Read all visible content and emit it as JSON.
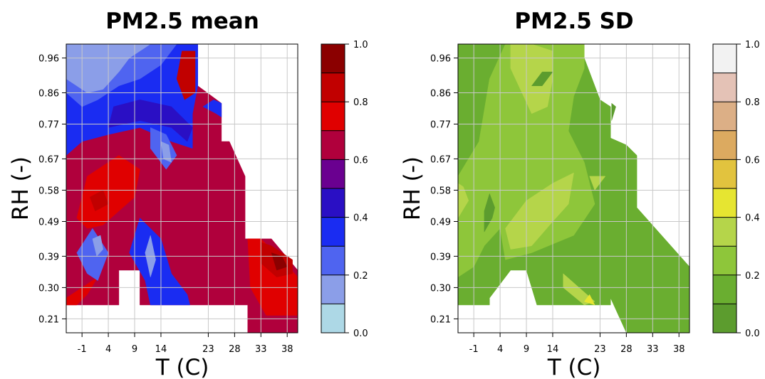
{
  "chart_data": [
    {
      "type": "heatmap",
      "title": "PM2.5 mean",
      "xlabel": "T (C)",
      "ylabel": "RH (-)",
      "x_ticks": [
        "-1",
        "4",
        "9",
        "14",
        "23",
        "28",
        "33",
        "38"
      ],
      "x_tick_values": [
        -1,
        4,
        9,
        14,
        23,
        28,
        33,
        38
      ],
      "y_ticks": [
        "0.21",
        "0.30",
        "0.39",
        "0.49",
        "0.58",
        "0.67",
        "0.77",
        "0.86",
        "0.96"
      ],
      "y_tick_values": [
        0.21,
        0.3,
        0.39,
        0.49,
        0.58,
        0.67,
        0.77,
        0.86,
        0.96
      ],
      "xlim": [
        -4,
        40
      ],
      "ylim": [
        0.17,
        1.0
      ],
      "grid": true,
      "colorbar": {
        "ticks": [
          "0.0",
          "0.2",
          "0.4",
          "0.6",
          "0.8",
          "1.0"
        ],
        "levels": [
          0.0,
          0.1,
          0.2,
          0.3,
          0.4,
          0.5,
          0.6,
          0.7,
          0.8,
          0.9,
          1.0
        ],
        "colors": [
          "#add8e6",
          "#8b9ee8",
          "#4f64f0",
          "#1a2cf2",
          "#2a0fc4",
          "#6a0090",
          "#b0003c",
          "#e00000",
          "#c10000",
          "#8b0000"
        ]
      },
      "regions": [
        {
          "value": 0.65,
          "polygon": [
            [
              -4,
              0.25
            ],
            [
              6,
              0.25
            ],
            [
              6,
              0.35
            ],
            [
              10,
              0.35
            ],
            [
              10,
              0.25
            ],
            [
              30.5,
              0.25
            ],
            [
              30.5,
              0.17
            ],
            [
              40,
              0.17
            ],
            [
              40,
              0.35
            ],
            [
              35,
              0.44
            ],
            [
              30,
              0.44
            ],
            [
              30,
              0.62
            ],
            [
              27,
              0.72
            ],
            [
              25.5,
              0.72
            ],
            [
              25.5,
              0.83
            ],
            [
              21,
              0.88
            ],
            [
              21,
              1.0
            ],
            [
              -4,
              1.0
            ]
          ]
        },
        {
          "value": 0.75,
          "polygon": [
            [
              -2,
              0.5
            ],
            [
              0,
              0.62
            ],
            [
              6,
              0.68
            ],
            [
              10,
              0.64
            ],
            [
              9,
              0.56
            ],
            [
              6,
              0.52
            ],
            [
              3,
              0.48
            ],
            [
              0,
              0.47
            ]
          ]
        },
        {
          "value": 0.75,
          "polygon": [
            [
              -4,
              0.27
            ],
            [
              -1,
              0.3
            ],
            [
              2,
              0.33
            ],
            [
              0,
              0.28
            ],
            [
              -2,
              0.25
            ],
            [
              -4,
              0.25
            ]
          ]
        },
        {
          "value": 0.75,
          "polygon": [
            [
              30.5,
              0.44
            ],
            [
              33,
              0.44
            ],
            [
              37,
              0.38
            ],
            [
              40,
              0.33
            ],
            [
              40,
              0.22
            ],
            [
              34,
              0.22
            ],
            [
              31,
              0.3
            ]
          ]
        },
        {
          "value": 0.85,
          "polygon": [
            [
              33,
              0.43
            ],
            [
              35,
              0.42
            ],
            [
              39,
              0.38
            ],
            [
              39,
              0.34
            ],
            [
              36,
              0.33
            ],
            [
              33,
              0.37
            ]
          ]
        },
        {
          "value": 0.95,
          "polygon": [
            [
              35,
              0.4
            ],
            [
              37,
              0.39
            ],
            [
              38,
              0.36
            ],
            [
              36,
              0.35
            ]
          ]
        },
        {
          "value": 0.85,
          "polygon": [
            [
              0.5,
              0.56
            ],
            [
              3,
              0.58
            ],
            [
              4,
              0.54
            ],
            [
              1.5,
              0.52
            ]
          ]
        },
        {
          "value": 0.35,
          "polygon": [
            [
              -4,
              0.68
            ],
            [
              -1,
              0.72
            ],
            [
              4,
              0.74
            ],
            [
              10,
              0.76
            ],
            [
              16,
              0.72
            ],
            [
              20,
              0.7
            ],
            [
              20,
              0.8
            ],
            [
              21,
              0.88
            ],
            [
              21,
              1.0
            ],
            [
              -4,
              1.0
            ]
          ]
        },
        {
          "value": 0.45,
          "polygon": [
            [
              4,
              0.76
            ],
            [
              10,
              0.78
            ],
            [
              16,
              0.76
            ],
            [
              19,
              0.72
            ],
            [
              20,
              0.76
            ],
            [
              16,
              0.82
            ],
            [
              10,
              0.84
            ],
            [
              5,
              0.82
            ]
          ]
        },
        {
          "value": 0.25,
          "polygon": [
            [
              -4,
              0.86
            ],
            [
              -1,
              0.82
            ],
            [
              2,
              0.84
            ],
            [
              6,
              0.88
            ],
            [
              10,
              0.9
            ],
            [
              14,
              0.94
            ],
            [
              17,
              1.0
            ],
            [
              -4,
              1.0
            ]
          ]
        },
        {
          "value": 0.15,
          "polygon": [
            [
              -4,
              0.9
            ],
            [
              0,
              0.86
            ],
            [
              3,
              0.87
            ],
            [
              6,
              0.92
            ],
            [
              8,
              0.96
            ],
            [
              12,
              1.0
            ],
            [
              -4,
              1.0
            ]
          ]
        },
        {
          "value": 0.25,
          "polygon": [
            [
              12,
              0.76
            ],
            [
              15,
              0.74
            ],
            [
              17,
              0.68
            ],
            [
              15,
              0.64
            ],
            [
              12,
              0.7
            ]
          ]
        },
        {
          "value": 0.15,
          "polygon": [
            [
              14,
              0.72
            ],
            [
              15.5,
              0.71
            ],
            [
              16,
              0.66
            ],
            [
              14.5,
              0.67
            ]
          ]
        },
        {
          "value": 0.25,
          "polygon": [
            [
              -2,
              0.4
            ],
            [
              1,
              0.47
            ],
            [
              4,
              0.4
            ],
            [
              2,
              0.32
            ],
            [
              0,
              0.34
            ]
          ]
        },
        {
          "value": 0.15,
          "polygon": [
            [
              1,
              0.44
            ],
            [
              2.5,
              0.45
            ],
            [
              3,
              0.41
            ],
            [
              1.8,
              0.39
            ]
          ]
        },
        {
          "value": 0.35,
          "polygon": [
            [
              8,
              0.4
            ],
            [
              10,
              0.5
            ],
            [
              14,
              0.44
            ],
            [
              16,
              0.34
            ],
            [
              19,
              0.28
            ],
            [
              19.5,
              0.25
            ],
            [
              12,
              0.25
            ],
            [
              11,
              0.32
            ]
          ]
        },
        {
          "value": 0.15,
          "polygon": [
            [
              11,
              0.4
            ],
            [
              12,
              0.45
            ],
            [
              13,
              0.38
            ],
            [
              12,
              0.33
            ]
          ]
        },
        {
          "value": 0.35,
          "polygon": [
            [
              22,
              0.82
            ],
            [
              24.5,
              0.8
            ],
            [
              25.5,
              0.79
            ],
            [
              25.5,
              0.83
            ],
            [
              24,
              0.84
            ]
          ]
        },
        {
          "value": 0.85,
          "polygon": [
            [
              18,
              0.98
            ],
            [
              20.5,
              0.98
            ],
            [
              20.5,
              0.86
            ],
            [
              18.5,
              0.84
            ],
            [
              17,
              0.9
            ]
          ]
        }
      ]
    },
    {
      "type": "heatmap",
      "title": "PM2.5 SD",
      "xlabel": "T (C)",
      "ylabel": "RH (-)",
      "x_ticks": [
        "-1",
        "4",
        "9",
        "14",
        "23",
        "28",
        "33",
        "38"
      ],
      "x_tick_values": [
        -1,
        4,
        9,
        14,
        23,
        28,
        33,
        38
      ],
      "y_ticks": [
        "0.21",
        "0.30",
        "0.39",
        "0.49",
        "0.58",
        "0.67",
        "0.77",
        "0.86",
        "0.96"
      ],
      "y_tick_values": [
        0.21,
        0.3,
        0.39,
        0.49,
        0.58,
        0.67,
        0.77,
        0.86,
        0.96
      ],
      "xlim": [
        -4,
        40
      ],
      "ylim": [
        0.17,
        1.0
      ],
      "grid": true,
      "colorbar": {
        "ticks": [
          "0.0",
          "0.2",
          "0.4",
          "0.6",
          "0.8",
          "1.0"
        ],
        "levels": [
          0.0,
          0.1,
          0.2,
          0.3,
          0.4,
          0.5,
          0.6,
          0.7,
          0.8,
          0.9,
          1.0
        ],
        "colors": [
          "#5c9c2e",
          "#6aae30",
          "#8ec63a",
          "#b5d54a",
          "#e6e531",
          "#e2c33e",
          "#dcaa60",
          "#dcaf86",
          "#e4c2b6",
          "#f2f2f2"
        ]
      },
      "regions": [
        {
          "value": 0.15,
          "polygon": [
            [
              -4,
              0.25
            ],
            [
              2,
              0.25
            ],
            [
              2,
              0.27
            ],
            [
              6,
              0.35
            ],
            [
              9,
              0.35
            ],
            [
              11,
              0.25
            ],
            [
              25,
              0.25
            ],
            [
              25,
              0.27
            ],
            [
              28,
              0.17
            ],
            [
              40,
              0.17
            ],
            [
              40,
              0.36
            ],
            [
              30,
              0.53
            ],
            [
              30,
              0.68
            ],
            [
              28,
              0.71
            ],
            [
              25,
              0.73
            ],
            [
              25,
              0.82
            ],
            [
              23,
              0.84
            ],
            [
              19,
              1.0
            ],
            [
              -4,
              1.0
            ],
            [
              -4,
              0.62
            ]
          ]
        },
        {
          "value": 0.25,
          "polygon": [
            [
              -4,
              0.62
            ],
            [
              0,
              0.72
            ],
            [
              2,
              0.9
            ],
            [
              5,
              1.0
            ],
            [
              20,
              1.0
            ],
            [
              20,
              0.93
            ],
            [
              18,
              0.85
            ],
            [
              17,
              0.75
            ],
            [
              20,
              0.66
            ],
            [
              22,
              0.54
            ],
            [
              18,
              0.45
            ],
            [
              10,
              0.4
            ],
            [
              5,
              0.38
            ],
            [
              4,
              0.47
            ],
            [
              1,
              0.42
            ],
            [
              -1,
              0.36
            ],
            [
              -4,
              0.33
            ]
          ]
        },
        {
          "value": 0.35,
          "polygon": [
            [
              6,
              0.93
            ],
            [
              10,
              0.8
            ],
            [
              13,
              0.82
            ],
            [
              14,
              0.9
            ],
            [
              14,
              0.98
            ],
            [
              10,
              1.0
            ],
            [
              6,
              1.0
            ]
          ]
        },
        {
          "value": 0.35,
          "polygon": [
            [
              5,
              0.47
            ],
            [
              9,
              0.55
            ],
            [
              14,
              0.6
            ],
            [
              18,
              0.63
            ],
            [
              17,
              0.54
            ],
            [
              14,
              0.49
            ],
            [
              10,
              0.42
            ],
            [
              6,
              0.41
            ]
          ]
        },
        {
          "value": 0.35,
          "polygon": [
            [
              -4,
              0.6
            ],
            [
              -3,
              0.59
            ],
            [
              -2,
              0.55
            ],
            [
              -4,
              0.5
            ]
          ]
        },
        {
          "value": 0.35,
          "polygon": [
            [
              21,
              0.62
            ],
            [
              24,
              0.62
            ],
            [
              22,
              0.58
            ]
          ]
        },
        {
          "value": 0.35,
          "polygon": [
            [
              16,
              0.34
            ],
            [
              19,
              0.3
            ],
            [
              22,
              0.26
            ],
            [
              20,
              0.25
            ],
            [
              16,
              0.3
            ]
          ]
        },
        {
          "value": 0.45,
          "polygon": [
            [
              20,
              0.26
            ],
            [
              21,
              0.28
            ],
            [
              22,
              0.25
            ]
          ]
        },
        {
          "value": 0.05,
          "polygon": [
            [
              1,
              0.46
            ],
            [
              2.5,
              0.5
            ],
            [
              3,
              0.53
            ],
            [
              2,
              0.57
            ],
            [
              1,
              0.52
            ]
          ]
        },
        {
          "value": 0.05,
          "polygon": [
            [
              10,
              0.88
            ],
            [
              12,
              0.92
            ],
            [
              14,
              0.92
            ],
            [
              12,
              0.88
            ]
          ]
        },
        {
          "value": 0.05,
          "polygon": [
            [
              26,
              0.82
            ],
            [
              25.2,
              0.78
            ],
            [
              25.2,
              0.83
            ]
          ]
        }
      ]
    }
  ]
}
